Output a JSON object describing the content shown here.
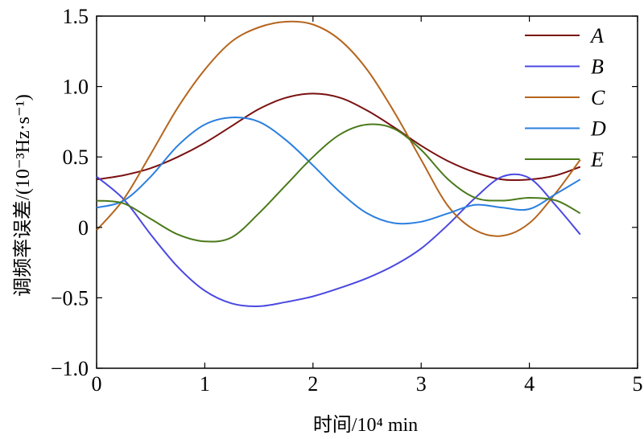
{
  "chart_data": {
    "type": "line",
    "xlabel": "时间/10⁴ min",
    "ylabel": "调频率误差/(10⁻³Hz·s⁻¹)",
    "xlim": [
      0,
      5
    ],
    "ylim": [
      -1.0,
      1.5
    ],
    "xticks": [
      0,
      1,
      2,
      3,
      4,
      5
    ],
    "xtick_labels": [
      "0",
      "1",
      "2",
      "3",
      "4",
      "5"
    ],
    "yticks": [
      -1.0,
      -0.5,
      0,
      0.5,
      1.0,
      1.5
    ],
    "ytick_labels": [
      "−1.0",
      "−0.5",
      "0",
      "0.5",
      "1.0",
      "1.5"
    ],
    "grid": false,
    "legend_position": "top-right",
    "series": [
      {
        "name": "A",
        "color": "#7a1010",
        "x": [
          0,
          0.25,
          0.5,
          0.75,
          1.0,
          1.25,
          1.5,
          1.75,
          2.0,
          2.25,
          2.5,
          2.75,
          3.0,
          3.25,
          3.5,
          3.75,
          4.0,
          4.25,
          4.47
        ],
        "y": [
          0.34,
          0.37,
          0.42,
          0.5,
          0.6,
          0.72,
          0.84,
          0.92,
          0.95,
          0.92,
          0.83,
          0.71,
          0.58,
          0.47,
          0.39,
          0.34,
          0.34,
          0.37,
          0.43
        ]
      },
      {
        "name": "B",
        "color": "#4a48e0",
        "x": [
          0,
          0.25,
          0.5,
          0.75,
          1.0,
          1.25,
          1.5,
          1.75,
          2.0,
          2.25,
          2.5,
          2.75,
          3.0,
          3.25,
          3.5,
          3.75,
          4.0,
          4.25,
          4.47
        ],
        "y": [
          0.36,
          0.2,
          -0.05,
          -0.28,
          -0.45,
          -0.54,
          -0.56,
          -0.53,
          -0.49,
          -0.43,
          -0.36,
          -0.27,
          -0.15,
          0.02,
          0.21,
          0.36,
          0.35,
          0.15,
          -0.05
        ]
      },
      {
        "name": "C",
        "color": "#b5651d",
        "x": [
          0,
          0.25,
          0.5,
          0.75,
          1.0,
          1.25,
          1.5,
          1.75,
          2.0,
          2.25,
          2.5,
          2.75,
          3.0,
          3.25,
          3.5,
          3.75,
          4.0,
          4.25,
          4.47
        ],
        "y": [
          -0.02,
          0.2,
          0.52,
          0.85,
          1.12,
          1.32,
          1.42,
          1.46,
          1.44,
          1.33,
          1.12,
          0.82,
          0.48,
          0.15,
          -0.02,
          -0.06,
          0.03,
          0.25,
          0.48
        ]
      },
      {
        "name": "D",
        "color": "#2a7fe0",
        "x": [
          0,
          0.25,
          0.5,
          0.75,
          1.0,
          1.25,
          1.5,
          1.75,
          2.0,
          2.25,
          2.5,
          2.75,
          3.0,
          3.25,
          3.5,
          3.75,
          4.0,
          4.25,
          4.47
        ],
        "y": [
          0.14,
          0.19,
          0.36,
          0.58,
          0.73,
          0.78,
          0.75,
          0.62,
          0.44,
          0.25,
          0.1,
          0.03,
          0.04,
          0.1,
          0.16,
          0.14,
          0.13,
          0.24,
          0.34
        ]
      },
      {
        "name": "E",
        "color": "#4a7a1a",
        "x": [
          0,
          0.25,
          0.5,
          0.75,
          1.0,
          1.25,
          1.5,
          1.75,
          2.0,
          2.25,
          2.5,
          2.75,
          3.0,
          3.25,
          3.5,
          3.75,
          4.0,
          4.25,
          4.47
        ],
        "y": [
          0.19,
          0.17,
          0.06,
          -0.05,
          -0.1,
          -0.07,
          0.1,
          0.3,
          0.5,
          0.66,
          0.73,
          0.7,
          0.55,
          0.34,
          0.21,
          0.19,
          0.21,
          0.19,
          0.1
        ]
      }
    ]
  }
}
